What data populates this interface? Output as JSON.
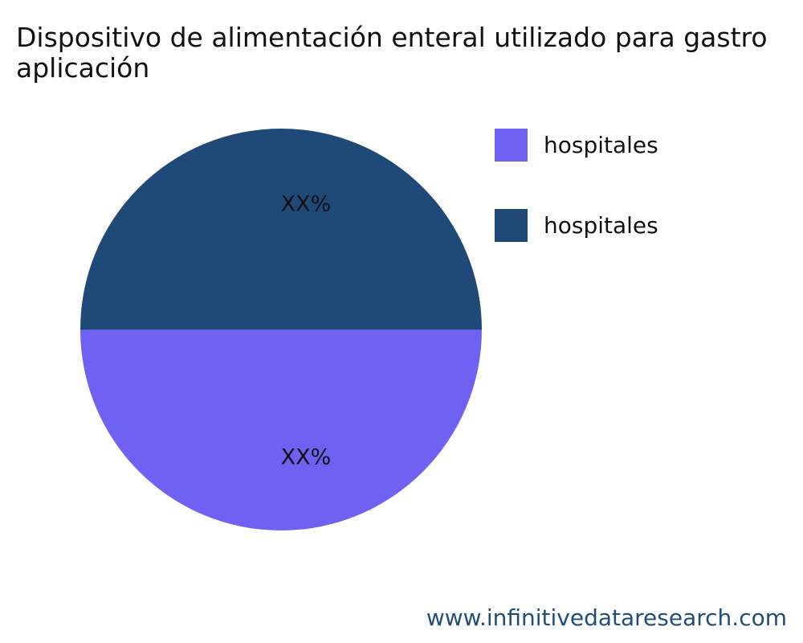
{
  "chart_data": {
    "type": "pie",
    "title_lines": [
      "Dispositivo de alimentación enteral utilizado para gastro",
      "aplicación"
    ],
    "slices": [
      {
        "label": "hospitales",
        "value": 50,
        "display_label": "XX%",
        "color": "#1f4a78"
      },
      {
        "label": "hospitales",
        "value": 50,
        "display_label": "XX%",
        "color": "#6f61f2"
      }
    ],
    "legend": {
      "position": "right",
      "items": [
        {
          "label": "hospitales",
          "color": "#6f61f2"
        },
        {
          "label": "hospitales",
          "color": "#1f4a78"
        }
      ]
    }
  },
  "footer": {
    "url": "www.infinitivedataresearch.com",
    "color": "#1f4e79"
  }
}
